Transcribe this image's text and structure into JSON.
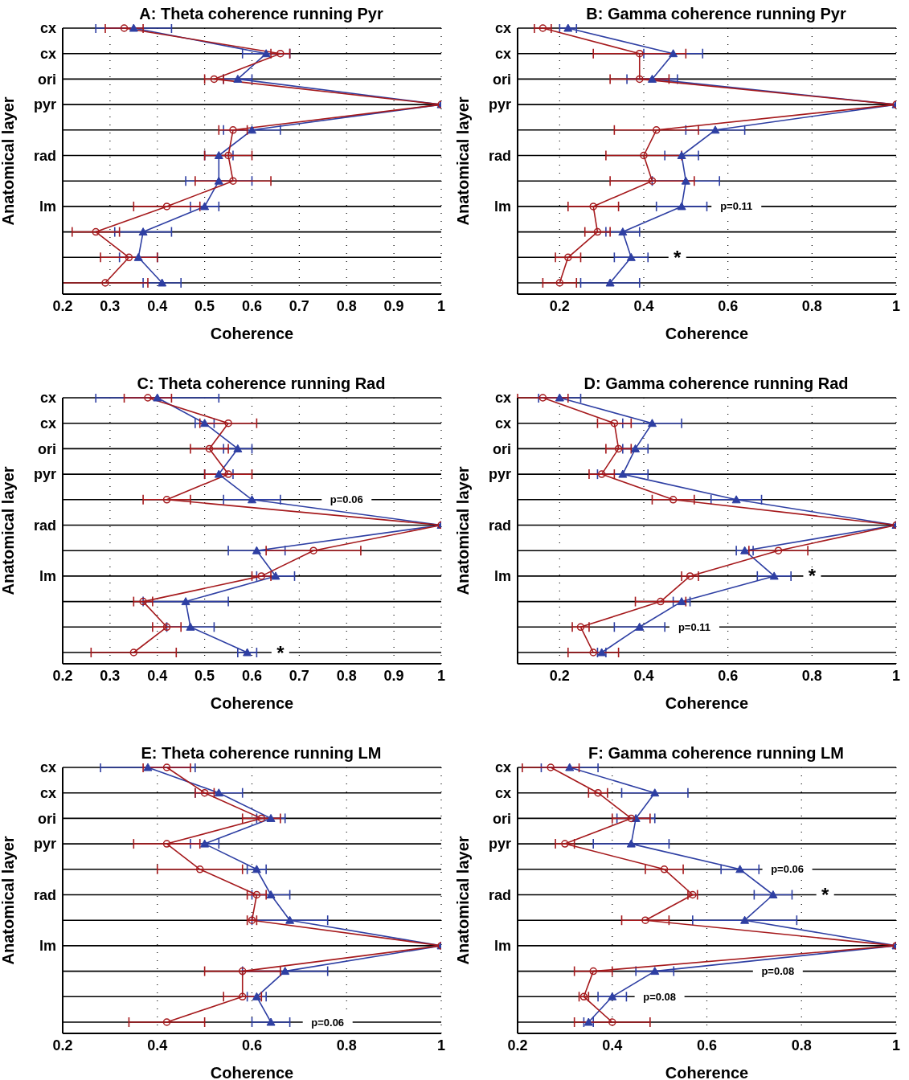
{
  "chart_data": [
    {
      "type": "line",
      "orientation": "horizontal",
      "title": "A: Theta coherence running Pyr",
      "xlabel": "Coherence",
      "ylabel": "Anatomical layer",
      "categories": [
        "cx",
        "cx",
        "ori",
        "pyr",
        null,
        "rad",
        null,
        "lm",
        null,
        null,
        null
      ],
      "xlim": [
        0.2,
        1
      ],
      "xticks": [
        0.2,
        0.3,
        0.4,
        0.5,
        0.6,
        0.7,
        0.8,
        0.9,
        1
      ],
      "grid": true,
      "legend": false,
      "series": [
        {
          "color": "#2e3fa3",
          "marker": "triangle",
          "values": [
            0.35,
            0.63,
            0.57,
            1,
            0.6,
            0.53,
            0.53,
            0.5,
            0.37,
            0.36,
            0.41
          ],
          "errors": [
            0.08,
            0.05,
            0.03,
            null,
            0.06,
            0.03,
            0.07,
            0.03,
            0.06,
            0.04,
            0.04
          ]
        },
        {
          "color": "#a5191c",
          "marker": "circle",
          "values": [
            0.33,
            0.66,
            0.52,
            1,
            0.56,
            0.55,
            0.56,
            0.42,
            0.27,
            0.34,
            0.29
          ],
          "errors": [
            0.04,
            0.02,
            0.02,
            null,
            0.03,
            0.05,
            0.08,
            0.07,
            0.05,
            0.06,
            0.09
          ]
        }
      ]
    },
    {
      "type": "line",
      "orientation": "horizontal",
      "title": "B: Gamma coherence running Pyr",
      "xlabel": "Coherence",
      "ylabel": "Anatomical layer",
      "categories": [
        "cx",
        "cx",
        "ori",
        "pyr",
        null,
        "rad",
        null,
        "lm",
        null,
        null,
        null
      ],
      "xlim": [
        0.1,
        1
      ],
      "xticks": [
        0.2,
        0.4,
        0.6,
        0.8,
        1
      ],
      "grid": true,
      "legend": false,
      "annotations": [
        "p=0.11",
        "*"
      ],
      "series": [
        {
          "color": "#2e3fa3",
          "marker": "triangle",
          "values": [
            0.22,
            0.47,
            0.42,
            1,
            0.57,
            0.49,
            0.5,
            0.49,
            0.35,
            0.37,
            0.32
          ],
          "errors": [
            0.02,
            0.07,
            0.06,
            null,
            0.07,
            0.04,
            0.08,
            0.06,
            0.04,
            0.04,
            0.07
          ]
        },
        {
          "color": "#a5191c",
          "marker": "circle",
          "values": [
            0.16,
            0.39,
            0.39,
            1,
            0.43,
            0.4,
            0.42,
            0.28,
            0.29,
            0.22,
            0.2
          ],
          "errors": [
            0.02,
            0.11,
            0.07,
            null,
            0.1,
            0.09,
            0.1,
            0.06,
            0.03,
            0.03,
            0.04
          ]
        }
      ]
    },
    {
      "type": "line",
      "orientation": "horizontal",
      "title": "C: Theta coherence running Rad",
      "xlabel": "Coherence",
      "ylabel": "Anatomical layer",
      "categories": [
        "cx",
        "cx",
        "ori",
        "pyr",
        null,
        "rad",
        null,
        "lm",
        null,
        null,
        null
      ],
      "xlim": [
        0.2,
        1
      ],
      "xticks": [
        0.2,
        0.3,
        0.4,
        0.5,
        0.6,
        0.7,
        0.8,
        0.9,
        1
      ],
      "grid": true,
      "legend": false,
      "annotations": [
        "p=0.06",
        "*"
      ],
      "series": [
        {
          "color": "#2e3fa3",
          "marker": "triangle",
          "values": [
            0.4,
            0.5,
            0.57,
            0.53,
            0.6,
            1,
            0.61,
            0.65,
            0.46,
            0.47,
            0.59
          ],
          "errors": [
            0.13,
            0.02,
            0.03,
            0.03,
            0.06,
            null,
            0.06,
            0.04,
            0.09,
            0.05,
            0.02
          ]
        },
        {
          "color": "#a5191c",
          "marker": "circle",
          "values": [
            0.38,
            0.55,
            0.51,
            0.55,
            0.42,
            1,
            0.73,
            0.62,
            0.37,
            0.42,
            0.35
          ],
          "errors": [
            0.05,
            0.06,
            0.04,
            0.05,
            0.05,
            null,
            0.1,
            0.02,
            0.02,
            0.03,
            0.09
          ]
        }
      ]
    },
    {
      "type": "line",
      "orientation": "horizontal",
      "title": "D: Gamma coherence running Rad",
      "xlabel": "Coherence",
      "ylabel": "Anatomical layer",
      "categories": [
        "cx",
        "cx",
        "ori",
        "pyr",
        null,
        "rad",
        null,
        "lm",
        null,
        null,
        null
      ],
      "xlim": [
        0.1,
        1
      ],
      "xticks": [
        0.2,
        0.4,
        0.6,
        0.8,
        1
      ],
      "grid": true,
      "legend": false,
      "annotations": [
        "*",
        "p=0.11"
      ],
      "series": [
        {
          "color": "#2e3fa3",
          "marker": "triangle",
          "values": [
            0.2,
            0.42,
            0.38,
            0.35,
            0.62,
            1,
            0.64,
            0.71,
            0.49,
            0.39,
            0.3
          ],
          "errors": [
            0.05,
            0.07,
            0.03,
            0.06,
            0.06,
            null,
            0.02,
            0.04,
            0.02,
            0.06,
            0.01
          ]
        },
        {
          "color": "#a5191c",
          "marker": "circle",
          "values": [
            0.16,
            0.33,
            0.34,
            0.3,
            0.47,
            1,
            0.72,
            0.51,
            0.44,
            0.25,
            0.28
          ],
          "errors": [
            0.06,
            0.04,
            0.03,
            0.03,
            0.05,
            null,
            0.07,
            0.02,
            0.06,
            0.02,
            0.06
          ]
        }
      ]
    },
    {
      "type": "line",
      "orientation": "horizontal",
      "title": "E: Theta coherence running LM",
      "xlabel": "Coherence",
      "ylabel": "Anatomical layer",
      "categories": [
        "cx",
        "cx",
        "ori",
        "pyr",
        null,
        "rad",
        null,
        "lm",
        null,
        null,
        null
      ],
      "xlim": [
        0.2,
        1
      ],
      "xticks": [
        0.2,
        0.4,
        0.6,
        0.8,
        1
      ],
      "grid": true,
      "legend": false,
      "annotations": [
        "p=0.06"
      ],
      "series": [
        {
          "color": "#2e3fa3",
          "marker": "triangle",
          "values": [
            0.38,
            0.53,
            0.64,
            0.5,
            0.61,
            0.64,
            0.68,
            1,
            0.67,
            0.61,
            0.64
          ],
          "errors": [
            0.1,
            0.05,
            0.03,
            0.03,
            0.02,
            0.04,
            0.08,
            null,
            0.09,
            0.02,
            0.04
          ]
        },
        {
          "color": "#a5191c",
          "marker": "circle",
          "values": [
            0.42,
            0.5,
            0.62,
            0.42,
            0.49,
            0.61,
            0.6,
            1,
            0.58,
            0.58,
            0.42
          ],
          "errors": [
            0.05,
            0.02,
            0.04,
            0.07,
            0.09,
            0.02,
            0.01,
            null,
            0.08,
            0.04,
            0.08
          ]
        }
      ]
    },
    {
      "type": "line",
      "orientation": "horizontal",
      "title": "F: Gamma coherence running LM",
      "xlabel": "Coherence",
      "ylabel": "Anatomical layer",
      "categories": [
        "cx",
        "cx",
        "ori",
        "pyr",
        null,
        "rad",
        null,
        "lm",
        null,
        null,
        null
      ],
      "xlim": [
        0.2,
        1
      ],
      "xticks": [
        0.2,
        0.4,
        0.6,
        0.8,
        1
      ],
      "grid": true,
      "legend": false,
      "annotations": [
        "p=0.06",
        "*",
        "p=0.08",
        "p=0.08"
      ],
      "series": [
        {
          "color": "#2e3fa3",
          "marker": "triangle",
          "values": [
            0.31,
            0.49,
            0.45,
            0.44,
            0.67,
            0.74,
            0.68,
            1,
            0.49,
            0.4,
            0.35
          ],
          "errors": [
            0.06,
            0.07,
            0.04,
            0.08,
            0.04,
            0.04,
            0.11,
            null,
            0.04,
            0.03,
            0.01
          ]
        },
        {
          "color": "#a5191c",
          "marker": "circle",
          "values": [
            0.27,
            0.37,
            0.44,
            0.3,
            0.51,
            0.57,
            0.47,
            1,
            0.36,
            0.34,
            0.4
          ],
          "errors": [
            0.06,
            0.02,
            0.04,
            0.02,
            0.04,
            0.01,
            0.05,
            null,
            0.04,
            0.01,
            0.08
          ]
        }
      ]
    }
  ]
}
